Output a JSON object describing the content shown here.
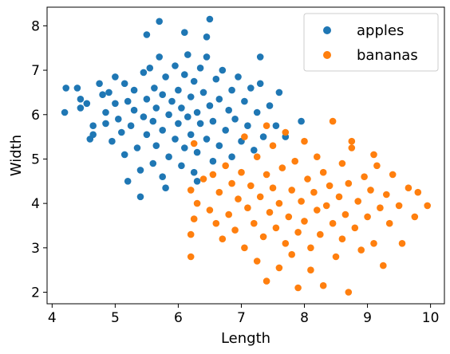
{
  "chart_data": {
    "type": "scatter",
    "title": "",
    "xlabel": "Length",
    "ylabel": "Width",
    "xlim": [
      3.92,
      10.22
    ],
    "ylim": [
      1.74,
      8.42
    ],
    "xticks": [
      4,
      5,
      6,
      7,
      8,
      9,
      10
    ],
    "yticks": [
      2,
      3,
      4,
      5,
      6,
      7,
      8
    ],
    "grid": false,
    "legend_position": "top-right",
    "series": [
      {
        "name": "apples",
        "color": "#1f77b4",
        "points": [
          [
            4.2,
            6.05
          ],
          [
            4.22,
            6.6
          ],
          [
            4.4,
            6.6
          ],
          [
            4.45,
            6.15
          ],
          [
            4.45,
            6.35
          ],
          [
            4.55,
            6.25
          ],
          [
            4.6,
            5.45
          ],
          [
            4.65,
            5.55
          ],
          [
            4.65,
            5.75
          ],
          [
            4.75,
            6.7
          ],
          [
            4.8,
            6.45
          ],
          [
            4.85,
            6.05
          ],
          [
            4.85,
            5.8
          ],
          [
            4.9,
            6.5
          ],
          [
            4.95,
            5.4
          ],
          [
            5.0,
            6.25
          ],
          [
            5.0,
            6.85
          ],
          [
            5.05,
            5.9
          ],
          [
            5.1,
            5.6
          ],
          [
            5.15,
            5.1
          ],
          [
            5.15,
            6.7
          ],
          [
            5.2,
            6.3
          ],
          [
            5.25,
            5.75
          ],
          [
            5.3,
            6.1
          ],
          [
            5.3,
            6.55
          ],
          [
            5.35,
            5.25
          ],
          [
            5.4,
            4.75
          ],
          [
            5.45,
            5.95
          ],
          [
            5.45,
            6.95
          ],
          [
            5.5,
            5.55
          ],
          [
            5.5,
            6.35
          ],
          [
            5.55,
            7.05
          ],
          [
            5.6,
            4.9
          ],
          [
            5.6,
            5.85
          ],
          [
            5.62,
            6.6
          ],
          [
            5.65,
            5.3
          ],
          [
            5.65,
            6.15
          ],
          [
            5.7,
            7.3
          ],
          [
            5.75,
            4.6
          ],
          [
            5.75,
            5.65
          ],
          [
            5.75,
            6.45
          ],
          [
            5.8,
            6.85
          ],
          [
            5.85,
            5.05
          ],
          [
            5.85,
            6.0
          ],
          [
            5.9,
            6.3
          ],
          [
            5.95,
            5.45
          ],
          [
            5.95,
            7.1
          ],
          [
            6.0,
            5.8
          ],
          [
            6.0,
            6.55
          ],
          [
            6.05,
            4.85
          ],
          [
            6.05,
            6.15
          ],
          [
            6.1,
            5.25
          ],
          [
            6.1,
            6.9
          ],
          [
            6.15,
            5.95
          ],
          [
            6.15,
            7.35
          ],
          [
            6.2,
            5.55
          ],
          [
            6.2,
            6.4
          ],
          [
            6.25,
            4.7
          ],
          [
            6.25,
            6.75
          ],
          [
            6.3,
            5.15
          ],
          [
            6.3,
            6.05
          ],
          [
            6.35,
            5.8
          ],
          [
            6.35,
            7.05
          ],
          [
            6.4,
            6.5
          ],
          [
            6.45,
            5.45
          ],
          [
            6.45,
            7.3
          ],
          [
            6.5,
            6.2
          ],
          [
            6.55,
            4.95
          ],
          [
            6.55,
            5.85
          ],
          [
            6.6,
            6.8
          ],
          [
            6.65,
            5.3
          ],
          [
            6.65,
            6.35
          ],
          [
            6.7,
            7.0
          ],
          [
            6.75,
            5.65
          ],
          [
            6.8,
            6.1
          ],
          [
            6.85,
            5.05
          ],
          [
            6.85,
            6.55
          ],
          [
            6.9,
            5.9
          ],
          [
            6.95,
            6.85
          ],
          [
            7.0,
            5.4
          ],
          [
            7.05,
            6.3
          ],
          [
            7.1,
            5.75
          ],
          [
            7.15,
            6.6
          ],
          [
            7.2,
            5.2
          ],
          [
            7.25,
            6.05
          ],
          [
            7.3,
            6.7
          ],
          [
            7.35,
            5.5
          ],
          [
            7.45,
            6.2
          ],
          [
            7.55,
            5.75
          ],
          [
            7.6,
            6.5
          ],
          [
            7.7,
            5.5
          ],
          [
            7.95,
            5.85
          ],
          [
            5.7,
            8.1
          ],
          [
            5.5,
            7.8
          ],
          [
            6.5,
            8.15
          ],
          [
            6.1,
            7.85
          ],
          [
            6.45,
            7.75
          ],
          [
            5.2,
            4.5
          ],
          [
            5.4,
            4.15
          ],
          [
            7.3,
            7.3
          ],
          [
            6.3,
            4.5
          ],
          [
            5.8,
            4.35
          ]
        ]
      },
      {
        "name": "bananas",
        "color": "#ff7f0e",
        "points": [
          [
            6.25,
            5.35
          ],
          [
            6.2,
            4.3
          ],
          [
            6.2,
            3.3
          ],
          [
            6.2,
            2.8
          ],
          [
            6.25,
            3.65
          ],
          [
            6.3,
            4.0
          ],
          [
            6.4,
            4.55
          ],
          [
            6.5,
            3.85
          ],
          [
            6.55,
            4.65
          ],
          [
            6.6,
            3.55
          ],
          [
            6.65,
            4.25
          ],
          [
            6.7,
            3.2
          ],
          [
            6.75,
            4.85
          ],
          [
            6.8,
            3.75
          ],
          [
            6.85,
            4.45
          ],
          [
            6.9,
            3.4
          ],
          [
            6.95,
            4.1
          ],
          [
            7.0,
            4.7
          ],
          [
            7.05,
            3.0
          ],
          [
            7.05,
            5.5
          ],
          [
            7.1,
            3.9
          ],
          [
            7.15,
            4.4
          ],
          [
            7.2,
            3.55
          ],
          [
            7.25,
            5.05
          ],
          [
            7.25,
            2.7
          ],
          [
            7.3,
            4.15
          ],
          [
            7.35,
            3.25
          ],
          [
            7.4,
            4.65
          ],
          [
            7.4,
            2.25
          ],
          [
            7.45,
            3.8
          ],
          [
            7.5,
            5.3
          ],
          [
            7.5,
            4.35
          ],
          [
            7.55,
            3.45
          ],
          [
            7.6,
            2.55
          ],
          [
            7.6,
            4.0
          ],
          [
            7.65,
            4.8
          ],
          [
            7.7,
            3.1
          ],
          [
            7.7,
            5.6
          ],
          [
            7.75,
            3.7
          ],
          [
            7.8,
            4.3
          ],
          [
            7.8,
            2.85
          ],
          [
            7.85,
            4.95
          ],
          [
            7.9,
            3.35
          ],
          [
            7.9,
            2.1
          ],
          [
            7.95,
            4.05
          ],
          [
            8.0,
            3.6
          ],
          [
            8.0,
            5.4
          ],
          [
            8.05,
            4.55
          ],
          [
            8.1,
            3.0
          ],
          [
            8.1,
            2.5
          ],
          [
            8.15,
            4.25
          ],
          [
            8.2,
            3.85
          ],
          [
            8.2,
            5.05
          ],
          [
            8.25,
            3.3
          ],
          [
            8.3,
            4.7
          ],
          [
            8.3,
            2.15
          ],
          [
            8.35,
            3.95
          ],
          [
            8.4,
            4.4
          ],
          [
            8.45,
            3.55
          ],
          [
            8.45,
            5.85
          ],
          [
            8.5,
            2.8
          ],
          [
            8.55,
            4.15
          ],
          [
            8.6,
            4.9
          ],
          [
            8.6,
            3.2
          ],
          [
            8.65,
            3.75
          ],
          [
            8.7,
            2.0
          ],
          [
            8.7,
            4.45
          ],
          [
            8.75,
            5.25
          ],
          [
            8.8,
            3.45
          ],
          [
            8.85,
            4.05
          ],
          [
            8.9,
            2.95
          ],
          [
            8.95,
            4.6
          ],
          [
            9.0,
            3.7
          ],
          [
            9.05,
            4.3
          ],
          [
            9.1,
            3.1
          ],
          [
            9.15,
            4.85
          ],
          [
            9.2,
            3.9
          ],
          [
            9.25,
            2.6
          ],
          [
            9.3,
            4.2
          ],
          [
            9.35,
            3.55
          ],
          [
            9.4,
            4.65
          ],
          [
            9.5,
            3.95
          ],
          [
            9.55,
            3.1
          ],
          [
            9.65,
            4.35
          ],
          [
            9.75,
            3.7
          ],
          [
            9.95,
            3.95
          ],
          [
            9.8,
            4.25
          ],
          [
            9.1,
            5.1
          ],
          [
            8.75,
            5.4
          ],
          [
            7.4,
            5.75
          ]
        ]
      }
    ]
  }
}
